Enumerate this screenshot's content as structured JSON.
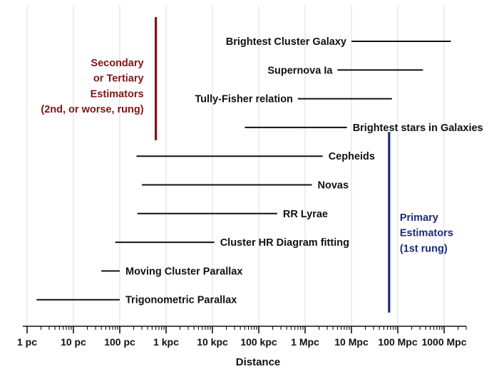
{
  "chart_data": {
    "type": "range",
    "xlabel": "Distance",
    "x_scale": "log",
    "x_unit": "pc",
    "xlim": [
      1,
      3000000000
    ],
    "x_ticks": [
      {
        "value": 1,
        "label": "1 pc"
      },
      {
        "value": 10,
        "label": "10 pc"
      },
      {
        "value": 100,
        "label": "100 pc"
      },
      {
        "value": 1000,
        "label": "1 kpc"
      },
      {
        "value": 10000,
        "label": "10 kpc"
      },
      {
        "value": 100000,
        "label": "100 kpc"
      },
      {
        "value": 1000000,
        "label": "1 Mpc"
      },
      {
        "value": 10000000,
        "label": "10 Mpc"
      },
      {
        "value": 100000000,
        "label": "100 Mpc"
      },
      {
        "value": 1000000000,
        "label": "1000 Mpc"
      }
    ],
    "grid": "vertical",
    "series": [
      {
        "name": "Brightest Cluster Galaxy",
        "x_start": 10000000,
        "x_end": 1400000000,
        "label_side": "left"
      },
      {
        "name": "Supernova Ia",
        "x_start": 5000000,
        "x_end": 350000000,
        "label_side": "left"
      },
      {
        "name": "Tully-Fisher relation",
        "x_start": 700000,
        "x_end": 75000000,
        "label_side": "left"
      },
      {
        "name": "Brightest stars in Galaxies",
        "x_start": 50000,
        "x_end": 8000000,
        "label_side": "right"
      },
      {
        "name": "Cepheids",
        "x_start": 230,
        "x_end": 2400000,
        "label_side": "right"
      },
      {
        "name": "Novas",
        "x_start": 300,
        "x_end": 1400000,
        "label_side": "right"
      },
      {
        "name": "RR Lyrae",
        "x_start": 240,
        "x_end": 250000,
        "label_side": "right"
      },
      {
        "name": "Cluster HR Diagram fitting",
        "x_start": 80,
        "x_end": 11000,
        "label_side": "right"
      },
      {
        "name": "Moving Cluster Parallax",
        "x_start": 40,
        "x_end": 100,
        "label_side": "right"
      },
      {
        "name": "Trigonometric Parallax",
        "x_start": 1.6,
        "x_end": 100,
        "label_side": "right"
      }
    ],
    "groups": [
      {
        "lines": [
          "Secondary",
          "or Tertiary",
          "Estimators",
          "(2nd, or worse, rung)"
        ],
        "color": "#7f1416",
        "x": 600,
        "spans": [
          "Brightest Cluster Galaxy",
          "Brightest stars in Galaxies"
        ]
      },
      {
        "lines": [
          "Primary",
          "Estimators",
          "(1st rung)"
        ],
        "color": "#1c2a78",
        "x": 65000000,
        "spans": [
          "Cepheids",
          "Trigonometric Parallax"
        ]
      }
    ]
  }
}
